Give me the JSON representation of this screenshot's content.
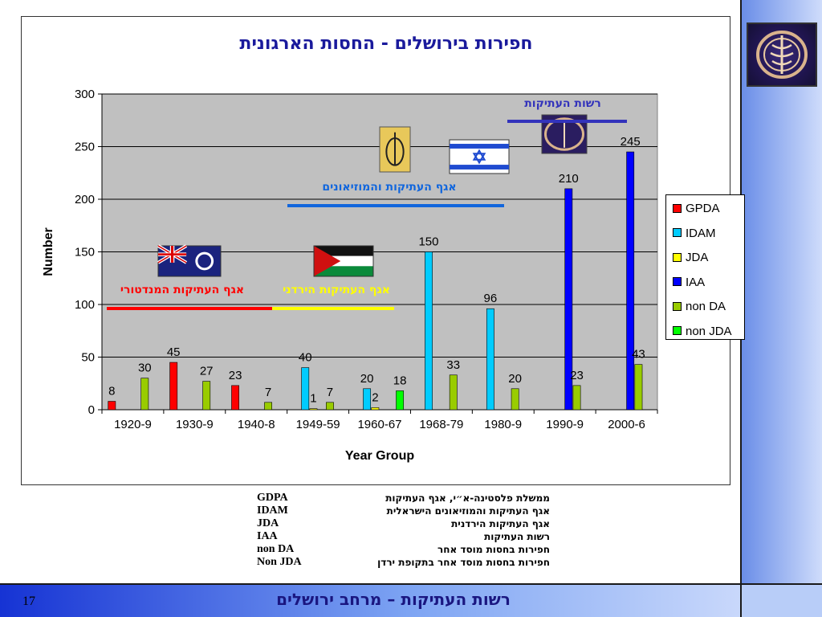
{
  "slide_number": "17",
  "footer_title": "רשות העתיקות – מרחב ירושלים",
  "abbreviations": [
    {
      "code": "GDPA",
      "desc": "ממשלת פלסטינה-א״י, אגף העתיקות"
    },
    {
      "code": "IDAM",
      "desc": "אגף העתיקות והמוזיאונים הישראלית"
    },
    {
      "code": "JDA",
      "desc": "אגף העתיקות הירדנית"
    },
    {
      "code": "IAA",
      "desc": "רשות העתיקות"
    },
    {
      "code": "non DA",
      "desc": "חפירות בחסות מוסד אחר"
    },
    {
      "code": "Non JDA",
      "desc": "חפירות בחסות מוסד אחר בתקופת ירדן"
    }
  ],
  "chart_data": {
    "type": "bar",
    "title": "חפירות בירושלים - החסות הארגונית",
    "xlabel": "Year Group",
    "ylabel": "Number",
    "ylim": [
      0,
      300
    ],
    "yticks": [
      "0",
      "50",
      "100",
      "150",
      "200",
      "250",
      "300"
    ],
    "grid": true,
    "legend_position": "right",
    "categories": [
      "1920-9",
      "1930-9",
      "1940-8",
      "1949-59",
      "1960-67",
      "1968-79",
      "1980-9",
      "1990-9",
      "2000-6"
    ],
    "series": [
      {
        "name": "GPDA",
        "color": "#ff0000",
        "values": [
          8,
          45,
          23,
          null,
          null,
          null,
          null,
          null,
          null
        ]
      },
      {
        "name": "IDAM",
        "color": "#00ccff",
        "values": [
          null,
          null,
          null,
          40,
          20,
          150,
          96,
          null,
          null
        ]
      },
      {
        "name": "JDA",
        "color": "#ffff00",
        "values": [
          null,
          null,
          null,
          1,
          2,
          null,
          null,
          null,
          null
        ]
      },
      {
        "name": "IAA",
        "color": "#0000ff",
        "values": [
          null,
          null,
          null,
          null,
          null,
          null,
          null,
          210,
          245
        ]
      },
      {
        "name": "non DA",
        "color": "#99cc00",
        "values": [
          30,
          27,
          7,
          7,
          null,
          33,
          20,
          23,
          43
        ]
      },
      {
        "name": "non JDA",
        "color": "#00ff00",
        "values": [
          null,
          null,
          null,
          null,
          18,
          null,
          null,
          null,
          null
        ]
      }
    ],
    "annotations": [
      {
        "text": "אגף העתיקות המנדטורי",
        "color": "#ff0000",
        "period": "mandate"
      },
      {
        "text": "אגף העתיקות הירדני",
        "color": "#ffff00",
        "period": "jordan"
      },
      {
        "text": "אגף העתיקות והמוזיאונים",
        "color": "#1166dd",
        "period": "idam"
      },
      {
        "text": "רשות העתיקות",
        "color": "#3333bb",
        "period": "iaa"
      }
    ],
    "flags": [
      {
        "name": "british-ensign-flag"
      },
      {
        "name": "jordan-flag"
      },
      {
        "name": "idam-emblem"
      },
      {
        "name": "israel-flag"
      },
      {
        "name": "iaa-emblem"
      }
    ]
  }
}
